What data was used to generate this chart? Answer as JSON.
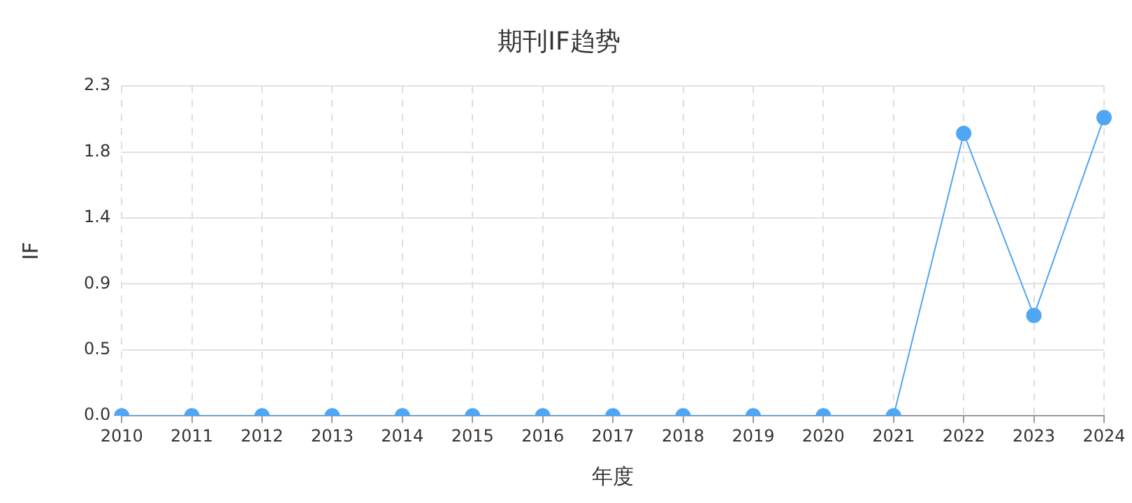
{
  "chart_data": {
    "type": "line",
    "title": "期刊IF趋势",
    "xlabel": "年度",
    "ylabel": "IF",
    "categories": [
      "2010",
      "2011",
      "2012",
      "2013",
      "2014",
      "2015",
      "2016",
      "2017",
      "2018",
      "2019",
      "2020",
      "2021",
      "2022",
      "2023",
      "2024"
    ],
    "series": [
      {
        "color": "#4ea6f5",
        "values": [
          0,
          0,
          0,
          0,
          0,
          0,
          0,
          0,
          0,
          0,
          0,
          0,
          1.97,
          0.7,
          2.08
        ]
      }
    ],
    "ylim": [
      0,
      2.3
    ],
    "yticks": [
      {
        "value": 0,
        "label": "0.0"
      },
      {
        "value": 0.46,
        "label": "0.5"
      },
      {
        "value": 0.92,
        "label": "0.9"
      },
      {
        "value": 1.38,
        "label": "1.4"
      },
      {
        "value": 1.84,
        "label": "1.8"
      },
      {
        "value": 2.3,
        "label": "2.3"
      }
    ],
    "grid": true,
    "marker": "circle",
    "legend": false
  }
}
